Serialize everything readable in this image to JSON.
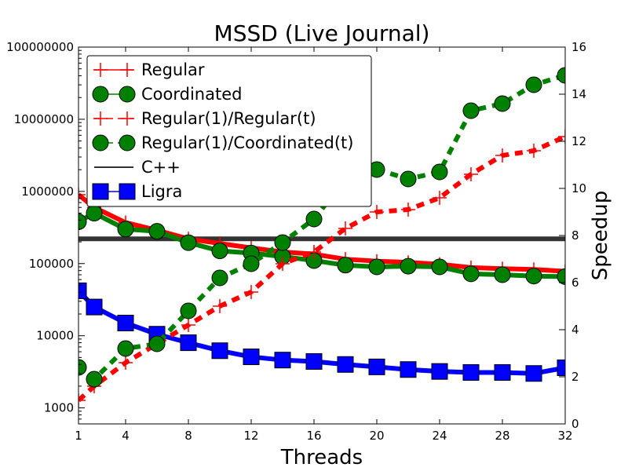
{
  "chart_data": {
    "type": "line",
    "title": "MSSD (Live Journal)",
    "xlabel": "Threads",
    "ylabel": "",
    "y2label": "Speedup",
    "xlim": [
      1,
      32
    ],
    "xticks": [
      1,
      4,
      8,
      12,
      16,
      20,
      24,
      28,
      32
    ],
    "ylim": [
      600,
      100000000
    ],
    "yscale": "log",
    "yticks": [
      1000,
      10000,
      100000,
      1000000,
      10000000,
      100000000
    ],
    "y2lim": [
      0,
      16
    ],
    "y2ticks": [
      0,
      2,
      4,
      6,
      8,
      10,
      12,
      14,
      16
    ],
    "legend_position": "top-left",
    "grid": false,
    "x": [
      1,
      2,
      4,
      6,
      8,
      10,
      12,
      14,
      16,
      18,
      20,
      22,
      24,
      26,
      28,
      30,
      32
    ],
    "series": [
      {
        "name": "Regular",
        "axis": "left",
        "color": "#ff0000",
        "style": "solid",
        "marker": "plus",
        "values": [
          900000,
          600000,
          370000,
          290000,
          220000,
          190000,
          165000,
          145000,
          135000,
          115000,
          108000,
          104000,
          98000,
          88000,
          85000,
          83000,
          78000
        ]
      },
      {
        "name": "Coordinated",
        "axis": "left",
        "color": "#008000",
        "style": "solid",
        "marker": "circle",
        "values": [
          380000,
          500000,
          300000,
          280000,
          195000,
          150000,
          140000,
          125000,
          110000,
          95000,
          90000,
          92000,
          90000,
          72000,
          70000,
          67000,
          66000
        ]
      },
      {
        "name": "Regular(1)/Regular(t)",
        "axis": "right",
        "color": "#ff0000",
        "style": "dashed",
        "marker": "plus",
        "values": [
          1.0,
          1.6,
          2.6,
          3.4,
          4.2,
          5.0,
          5.6,
          6.8,
          7.3,
          8.3,
          9.0,
          9.1,
          9.6,
          10.6,
          11.4,
          11.6,
          12.2
        ]
      },
      {
        "name": "Regular(1)/Coordinated(t)",
        "axis": "right",
        "color": "#008000",
        "style": "dashed",
        "marker": "circle",
        "values": [
          2.4,
          1.9,
          3.2,
          3.4,
          4.8,
          6.2,
          6.8,
          7.7,
          8.7,
          10.4,
          10.8,
          10.4,
          10.7,
          13.3,
          13.6,
          14.4,
          14.8
        ]
      },
      {
        "name": "C++",
        "axis": "left",
        "color": "#333333",
        "style": "solid",
        "marker": "none",
        "values": [
          220000,
          220000,
          220000,
          220000,
          220000,
          220000,
          220000,
          220000,
          220000,
          220000,
          220000,
          220000,
          220000,
          220000,
          220000,
          220000,
          220000
        ]
      },
      {
        "name": "Ligra",
        "axis": "left",
        "color": "#0000ff",
        "style": "solid",
        "marker": "square",
        "values": [
          42000,
          25000,
          15000,
          10500,
          8000,
          6200,
          5100,
          4600,
          4400,
          4000,
          3700,
          3400,
          3200,
          3100,
          3100,
          3000,
          3600
        ]
      }
    ]
  }
}
